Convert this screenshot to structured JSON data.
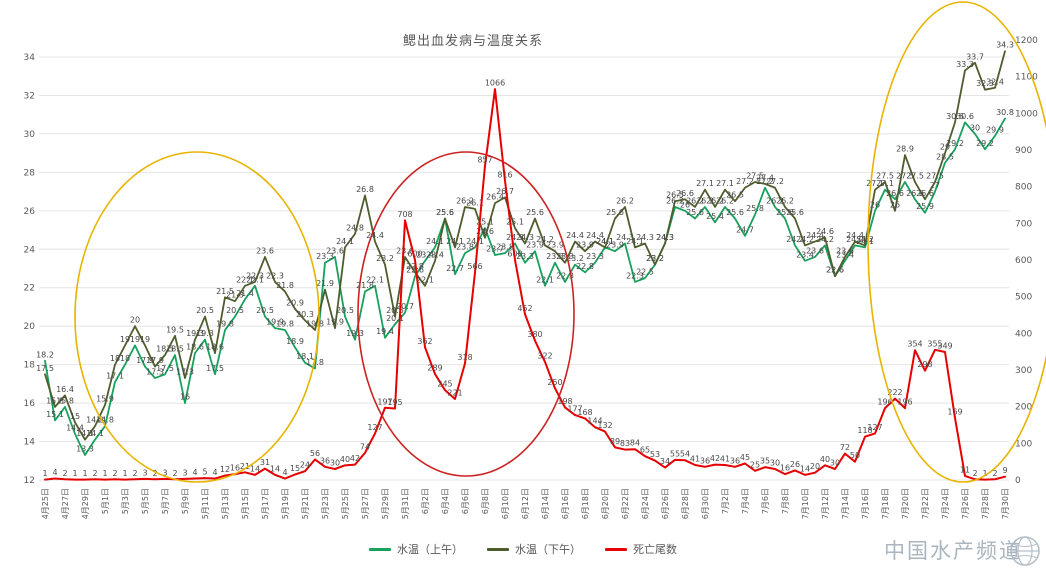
{
  "page": {
    "title": "鳃出血发病与温度关系"
  },
  "legend": {
    "items": [
      {
        "label": "水温（上午）",
        "color": "#18a05d"
      },
      {
        "label": "水温（下午）",
        "color": "#4e5d2d"
      },
      {
        "label": "死亡尾数",
        "color": "#e60000"
      }
    ]
  },
  "watermark": {
    "text": "中国水产频道"
  },
  "chart_data": {
    "type": "line",
    "title": "鳃出血发病与温度关系",
    "grid": true,
    "legend_position": "bottom",
    "x_tick_step": 2,
    "temp_axis": {
      "side": "left",
      "min": 12,
      "max": 34,
      "tick_step": 2
    },
    "death_axis": {
      "side": "right",
      "min": 0,
      "max": 1200,
      "tick_step": 100
    },
    "x": [
      "4月25日",
      "4月26日",
      "4月27日",
      "4月28日",
      "4月29日",
      "4月30日",
      "5月1日",
      "5月2日",
      "5月3日",
      "5月4日",
      "5月5日",
      "5月6日",
      "5月7日",
      "5月8日",
      "5月9日",
      "5月10日",
      "5月11日",
      "5月12日",
      "5月13日",
      "5月14日",
      "5月15日",
      "5月16日",
      "5月17日",
      "5月18日",
      "5月19日",
      "5月20日",
      "5月21日",
      "5月22日",
      "5月23日",
      "5月24日",
      "5月25日",
      "5月26日",
      "5月27日",
      "5月28日",
      "5月29日",
      "5月30日",
      "5月31日",
      "6月1日",
      "6月2日",
      "6月3日",
      "6月4日",
      "6月5日",
      "6月6日",
      "6月7日",
      "6月8日",
      "6月9日",
      "6月10日",
      "6月11日",
      "6月12日",
      "6月13日",
      "6月14日",
      "6月15日",
      "6月16日",
      "6月17日",
      "6月18日",
      "6月19日",
      "6月20日",
      "6月21日",
      "6月22日",
      "6月23日",
      "6月24日",
      "6月25日",
      "6月26日",
      "6月27日",
      "6月28日",
      "6月29日",
      "6月30日",
      "7月1日",
      "7月2日",
      "7月3日",
      "7月4日",
      "7月5日",
      "7月6日",
      "7月7日",
      "7月8日",
      "7月9日",
      "7月10日",
      "7月11日",
      "7月12日",
      "7月13日",
      "7月14日",
      "7月15日",
      "7月16日",
      "7月17日",
      "7月18日",
      "7月19日",
      "7月20日",
      "7月21日",
      "7月22日",
      "7月23日",
      "7月24日",
      "7月25日",
      "7月26日",
      "7月27日",
      "7月28日",
      "7月29日",
      "7月30日"
    ],
    "series": [
      {
        "name": "水温（上午）",
        "axis": "temp",
        "color": "#18a05d",
        "label_color": "#464646",
        "values": [
          18.2,
          15.1,
          15.8,
          14.4,
          13.3,
          14.1,
          14.8,
          17.1,
          18.0,
          19.0,
          17.9,
          17.3,
          17.5,
          18.5,
          16.0,
          18.6,
          19.3,
          17.5,
          19.8,
          20.5,
          21.4,
          22.1,
          20.5,
          19.9,
          19.8,
          18.9,
          18.1,
          17.8,
          23.3,
          23.6,
          20.5,
          19.3,
          21.8,
          22.1,
          19.4,
          20.1,
          20.7,
          22.6,
          23.4,
          24.1,
          25.6,
          22.7,
          23.8,
          24.1,
          25.1,
          23.7,
          23.8,
          24.3,
          23.3,
          23.9,
          22.1,
          23.3,
          22.3,
          23.2,
          22.8,
          23.3,
          24.1,
          23.9,
          24.3,
          22.3,
          22.5,
          23.2,
          24.3,
          26.2,
          26.0,
          25.6,
          26.2,
          25.4,
          26.2,
          25.6,
          24.7,
          25.8,
          27.2,
          26.2,
          25.6,
          24.2,
          23.4,
          23.6,
          24.2,
          22.6,
          23.4,
          24.2,
          24.1,
          26.0,
          27.1,
          26.6,
          27.5,
          26.6,
          25.9,
          27.0,
          28.5,
          29.2,
          30.6,
          30.0,
          29.2,
          29.9,
          30.8
        ]
      },
      {
        "name": "水温（下午）",
        "axis": "temp",
        "color": "#4e5d2d",
        "label_color": "#464646",
        "values": [
          17.5,
          15.8,
          16.4,
          15.0,
          14.1,
          14.8,
          15.9,
          18.0,
          19.0,
          20.0,
          19.0,
          17.9,
          18.5,
          19.5,
          17.3,
          19.3,
          20.5,
          18.6,
          21.5,
          21.3,
          22.1,
          22.3,
          23.6,
          22.3,
          21.8,
          20.9,
          20.3,
          19.8,
          21.9,
          19.9,
          24.1,
          24.8,
          26.8,
          24.4,
          23.2,
          20.5,
          23.6,
          22.8,
          22.1,
          23.4,
          25.6,
          24.1,
          26.2,
          26.1,
          24.6,
          26.4,
          26.7,
          25.1,
          24.3,
          25.6,
          24.2,
          23.9,
          23.3,
          24.4,
          23.9,
          24.4,
          24.1,
          25.6,
          26.2,
          24.1,
          24.3,
          23.2,
          24.3,
          26.5,
          26.6,
          26.2,
          27.1,
          26.2,
          27.1,
          26.5,
          27.2,
          27.5,
          27.4,
          27.2,
          26.2,
          25.6,
          24.2,
          24.4,
          24.6,
          22.6,
          23.6,
          24.4,
          24.2,
          27.1,
          27.5,
          26.0,
          28.9,
          27.5,
          26.6,
          27.5,
          29.0,
          30.6,
          33.3,
          33.7,
          32.3,
          32.4,
          34.3
        ]
      },
      {
        "name": "死亡尾数",
        "axis": "death",
        "color": "#e60000",
        "label_color": "#4a4a4a",
        "values": [
          1,
          4,
          2,
          1,
          1,
          2,
          1,
          2,
          1,
          2,
          3,
          2,
          3,
          2,
          3,
          4,
          5,
          4,
          12,
          16,
          21,
          14,
          31,
          14,
          4,
          15,
          24,
          56,
          36,
          30,
          40,
          42,
          74,
          127,
          197,
          195,
          708,
          600,
          362,
          289,
          245,
          221,
          318,
          566,
          857,
          1066,
          816,
          600,
          452,
          380,
          322,
          250,
          198,
          177,
          168,
          144,
          132,
          89,
          83,
          84,
          65,
          53,
          34,
          55,
          54,
          41,
          36,
          42,
          41,
          36,
          45,
          25,
          35,
          30,
          16,
          26,
          14,
          20,
          40,
          30,
          72,
          50,
          118,
          127,
          196,
          222,
          196,
          354,
          298,
          355,
          349,
          169,
          11,
          2,
          1,
          2,
          9
        ]
      }
    ],
    "annotations": [
      {
        "shape": "ellipse",
        "color": "#e8b400",
        "cx": 197,
        "cy": 317,
        "rx": 122,
        "ry": 165
      },
      {
        "shape": "ellipse",
        "color": "#cc2222",
        "cx": 466,
        "cy": 314,
        "rx": 108,
        "ry": 162
      },
      {
        "shape": "ellipse",
        "color": "#e8b400",
        "cx": 963,
        "cy": 242,
        "rx": 95,
        "ry": 240
      }
    ]
  }
}
